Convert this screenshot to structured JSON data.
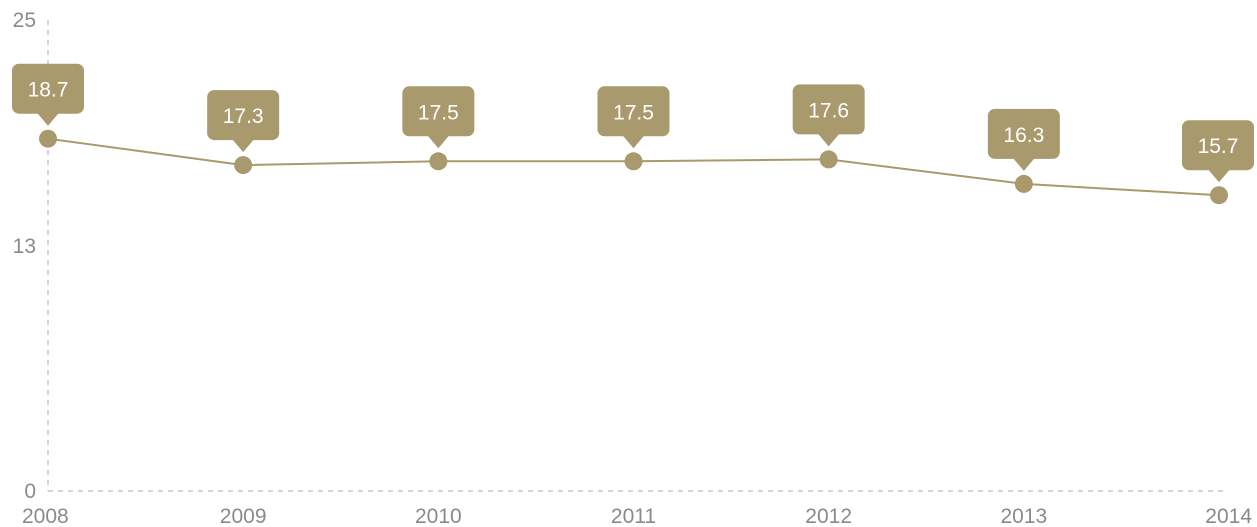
{
  "colors": {
    "series": "#a89a6c",
    "axis": "#c8c8c8",
    "tick_text": "#8a8a8a",
    "label_text": "#ffffff"
  },
  "chart_data": {
    "type": "line",
    "x": [
      "2008",
      "2009",
      "2010",
      "2011",
      "2012",
      "2013",
      "2014"
    ],
    "series": [
      {
        "values": [
          18.7,
          17.3,
          17.5,
          17.5,
          17.6,
          16.3,
          15.7
        ]
      }
    ],
    "data_labels": [
      "18.7",
      "17.3",
      "17.5",
      "17.5",
      "17.6",
      "16.3",
      "15.7"
    ],
    "y_ticks": [
      0,
      13,
      25
    ],
    "y_tick_labels": [
      "0",
      "13",
      "25"
    ],
    "ylim": [
      0,
      25
    ],
    "grid": false,
    "legend": "none"
  }
}
